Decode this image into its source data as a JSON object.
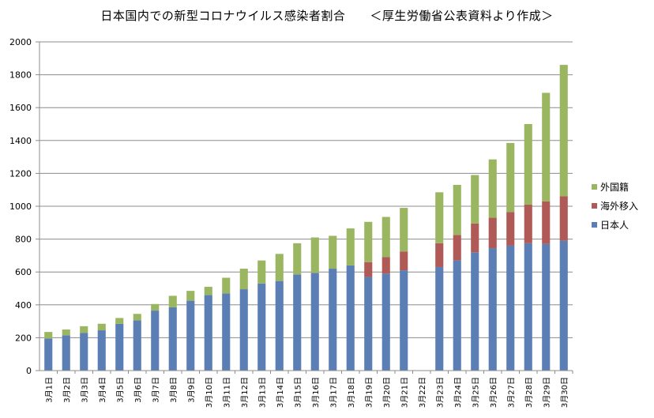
{
  "chart_data": {
    "type": "bar",
    "stacked": true,
    "title": "日本国内での新型コロナウイルス感染者割合　　＜厚生労働省公表資料より作成＞",
    "xlabel": "",
    "ylabel": "",
    "ylim": [
      0,
      2000
    ],
    "yticks": [
      0,
      200,
      400,
      600,
      800,
      1000,
      1200,
      1400,
      1600,
      1800,
      2000
    ],
    "grid": true,
    "legend_position": "right",
    "categories": [
      "3月1日",
      "3月2日",
      "3月3日",
      "3月4日",
      "3月5日",
      "3月6日",
      "3月7日",
      "3月8日",
      "3月9日",
      "3月10日",
      "3月11日",
      "3月12日",
      "3月13日",
      "3月14日",
      "3月15日",
      "3月16日",
      "3月17日",
      "3月18日",
      "3月19日",
      "3月20日",
      "3月21日",
      "3月22日",
      "3月23日",
      "3月24日",
      "3月25日",
      "3月26日",
      "3月27日",
      "3月28日",
      "3月29日",
      "3月30日"
    ],
    "series": [
      {
        "name": "日本人",
        "color": "#5B7FB4",
        "values": [
          195,
          215,
          230,
          245,
          285,
          305,
          365,
          385,
          425,
          460,
          470,
          495,
          530,
          545,
          585,
          595,
          620,
          640,
          570,
          590,
          610,
          null,
          630,
          670,
          720,
          745,
          760,
          775,
          770,
          790
        ]
      },
      {
        "name": "海外移入",
        "color": "#B05A57",
        "values": [
          0,
          0,
          0,
          0,
          0,
          0,
          0,
          0,
          0,
          0,
          0,
          0,
          0,
          0,
          0,
          0,
          0,
          0,
          90,
          100,
          115,
          null,
          145,
          155,
          175,
          185,
          205,
          235,
          260,
          270
        ]
      },
      {
        "name": "外国籍",
        "color": "#9BB661",
        "values": [
          40,
          35,
          40,
          40,
          35,
          40,
          40,
          70,
          60,
          50,
          95,
          125,
          140,
          165,
          190,
          215,
          200,
          225,
          245,
          245,
          265,
          null,
          310,
          305,
          295,
          355,
          420,
          490,
          660,
          800
        ]
      }
    ],
    "legend_order": [
      "外国籍",
      "海外移入",
      "日本人"
    ]
  }
}
